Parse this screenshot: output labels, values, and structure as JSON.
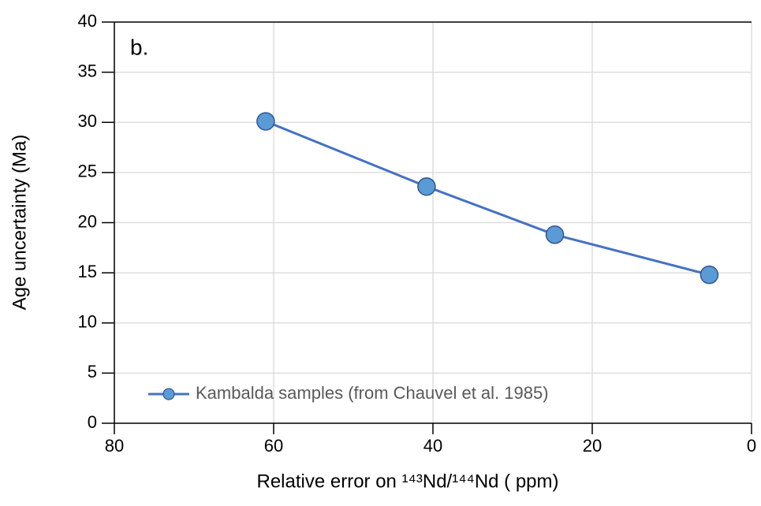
{
  "chart_data": {
    "type": "line",
    "annotation": "b.",
    "x_label": "Relative error on ¹⁴³Nd/¹⁴⁴Nd ( ppm)",
    "y_label": "Age uncertainty (Ma)",
    "x": [
      61,
      40.8,
      24.7,
      5.3
    ],
    "series": [
      {
        "name": "Kambalda samples (from Chauvel et al. 1985)",
        "color": "#4472c4",
        "marker_color": "#5b9bd5",
        "values": [
          30.1,
          23.6,
          18.8,
          14.8
        ]
      }
    ],
    "xlim": [
      80,
      0
    ],
    "xticks": [
      80,
      60,
      40,
      20,
      0
    ],
    "ylim": [
      0,
      40
    ],
    "yticks": [
      0,
      5,
      10,
      15,
      20,
      25,
      30,
      35,
      40
    ],
    "grid": true,
    "legend": "bottom-left"
  }
}
